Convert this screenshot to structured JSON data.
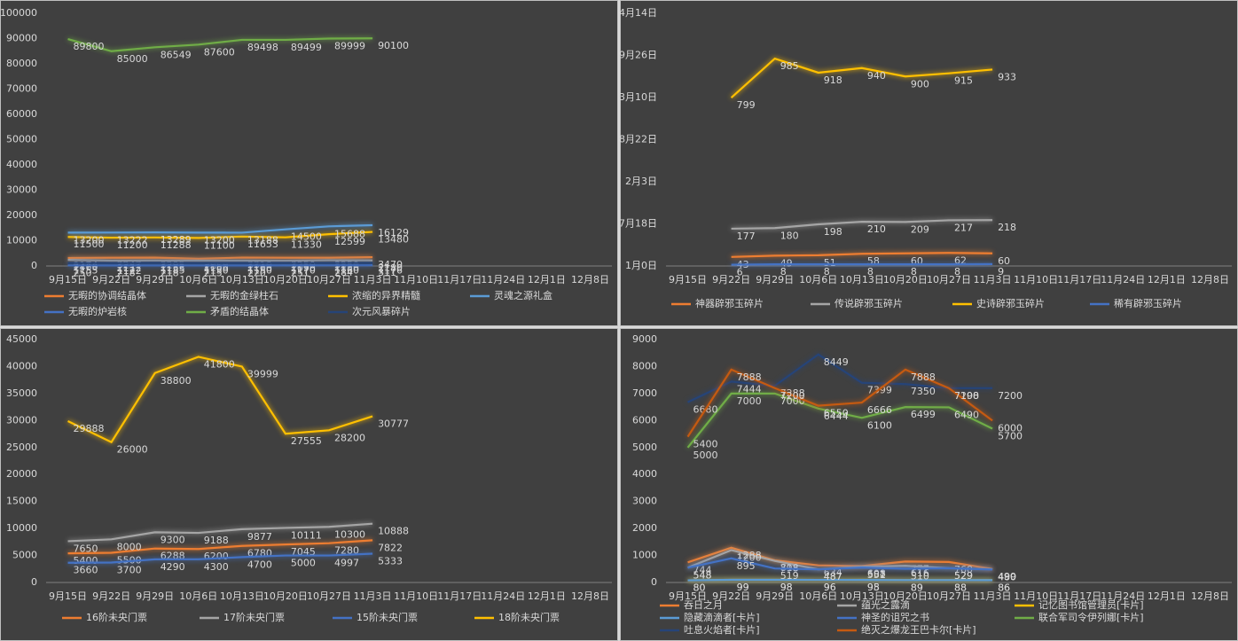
{
  "chart_data": [
    {
      "type": "line",
      "categories": [
        "9月15日",
        "9月22日",
        "9月29日",
        "10月6日",
        "10月13日",
        "10月20日",
        "10月27日",
        "11月3日",
        "11月10日",
        "11月17日",
        "11月24日",
        "12月1日",
        "12月8日"
      ],
      "ylim": [
        0,
        100000
      ],
      "yticks": [
        0,
        10000,
        20000,
        30000,
        40000,
        50000,
        60000,
        70000,
        80000,
        90000,
        100000
      ],
      "series": [
        {
          "name": "无暇的协调结晶体",
          "color": "#ed7d31",
          "values": [
            3174,
            3247,
            3295,
            2850,
            3310,
            3250,
            3250,
            3470,
            null,
            null,
            null,
            null,
            null
          ]
        },
        {
          "name": "无暇的金绿柱石",
          "color": "#a5a5a5",
          "values": [
            2400,
            2112,
            2155,
            2100,
            2100,
            2090,
            2250,
            2180,
            null,
            null,
            null,
            null,
            null
          ]
        },
        {
          "name": "浓缩的异界精髓",
          "color": "#ffc000",
          "values": [
            11500,
            11200,
            11288,
            11100,
            11653,
            11330,
            12599,
            13480,
            null,
            null,
            null,
            null,
            null
          ]
        },
        {
          "name": "灵魂之源礼盒",
          "color": "#5b9bd5",
          "values": [
            13200,
            13222,
            13289,
            13200,
            13188,
            14500,
            15688,
            16129,
            null,
            null,
            null,
            null,
            null
          ]
        },
        {
          "name": "无暇的炉岩核",
          "color": "#4472c4",
          "values": [
            250,
            218,
            218,
            215,
            220,
            251,
            284,
            311,
            null,
            null,
            null,
            null,
            null
          ]
        },
        {
          "name": "矛盾的结晶体",
          "color": "#70ad47",
          "values": [
            89800,
            85000,
            86549,
            87600,
            89498,
            89499,
            89999,
            90100,
            null,
            null,
            null,
            null,
            null
          ]
        },
        {
          "name": "次元风暴碎片",
          "color": "#264478",
          "values": [
            1155,
            1122,
            1185,
            1150,
            1150,
            1170,
            1160,
            1176,
            null,
            null,
            null,
            null,
            null
          ]
        }
      ]
    },
    {
      "type": "line",
      "categories": [
        "9月15日",
        "9月22日",
        "9月29日",
        "10月6日",
        "10月13日",
        "10月20日",
        "10月27日",
        "11月3日",
        "11月10日",
        "11月17日",
        "11月24日",
        "12月1日",
        "12月8日"
      ],
      "ylim": [
        0,
        1200
      ],
      "yticks": [
        {
          "value": 0,
          "label": "1月0日"
        },
        {
          "value": 200,
          "label": "7月18日"
        },
        {
          "value": 400,
          "label": "2月3日"
        },
        {
          "value": 600,
          "label": "8月22日"
        },
        {
          "value": 800,
          "label": "3月10日"
        },
        {
          "value": 1000,
          "label": "9月26日"
        },
        {
          "value": 1200,
          "label": "4月14日"
        }
      ],
      "series": [
        {
          "name": "神器辟邪玉碎片",
          "color": "#ed7d31",
          "values": [
            null,
            43,
            49,
            51,
            58,
            60,
            62,
            60,
            null,
            null,
            null,
            null,
            null
          ]
        },
        {
          "name": "传说辟邪玉碎片",
          "color": "#a5a5a5",
          "values": [
            null,
            177,
            180,
            198,
            210,
            209,
            217,
            218,
            null,
            null,
            null,
            null,
            null
          ]
        },
        {
          "name": "史诗辟邪玉碎片",
          "color": "#ffc000",
          "values": [
            null,
            799,
            985,
            918,
            940,
            900,
            915,
            933,
            null,
            null,
            null,
            null,
            null
          ]
        },
        {
          "name": "稀有辟邪玉碎片",
          "color": "#4472c4",
          "values": [
            null,
            6,
            8,
            8,
            8,
            8,
            8,
            9,
            null,
            null,
            null,
            null,
            null
          ]
        }
      ]
    },
    {
      "type": "line",
      "categories": [
        "9月15日",
        "9月22日",
        "9月29日",
        "10月6日",
        "10月13日",
        "10月20日",
        "10月27日",
        "11月3日",
        "11月10日",
        "11月17日",
        "11月24日",
        "12月1日",
        "12月8日"
      ],
      "ylim": [
        0,
        45000
      ],
      "yticks": [
        0,
        5000,
        10000,
        15000,
        20000,
        25000,
        30000,
        35000,
        40000,
        45000
      ],
      "series": [
        {
          "name": "16阶未央门票",
          "color": "#ed7d31",
          "values": [
            5400,
            5500,
            6288,
            6200,
            6780,
            7045,
            7280,
            7822,
            null,
            null,
            null,
            null,
            null
          ]
        },
        {
          "name": "17阶未央门票",
          "color": "#a5a5a5",
          "values": [
            7650,
            8000,
            9300,
            9188,
            9877,
            10111,
            10300,
            10888,
            null,
            null,
            null,
            null,
            null
          ]
        },
        {
          "name": "15阶未央门票",
          "color": "#4472c4",
          "values": [
            3660,
            3700,
            4290,
            4300,
            4700,
            5000,
            4997,
            5333,
            null,
            null,
            null,
            null,
            null
          ]
        },
        {
          "name": "18阶未央门票",
          "color": "#ffc000",
          "values": [
            29888,
            26000,
            38800,
            41800,
            39999,
            27555,
            28200,
            30777,
            null,
            null,
            null,
            null,
            null
          ]
        }
      ]
    },
    {
      "type": "line",
      "categories": [
        "9月15日",
        "9月22日",
        "9月29日",
        "10月6日",
        "10月13日",
        "10月20日",
        "10月27日",
        "11月3日",
        "11月10日",
        "11月17日",
        "11月24日",
        "12月1日",
        "12月8日"
      ],
      "ylim": [
        0,
        9000
      ],
      "yticks": [
        0,
        1000,
        2000,
        3000,
        4000,
        5000,
        6000,
        7000,
        8000,
        9000
      ],
      "series": [
        {
          "name": "吞日之月",
          "color": "#ed7d31",
          "values": [
            744,
            1288,
            818,
            634,
            608,
            777,
            760,
            499,
            null,
            null,
            null,
            null,
            null
          ]
        },
        {
          "name": "蕴光之露滴",
          "color": "#a5a5a5",
          "values": [
            548,
            1200,
            798,
            487,
            582,
            616,
            529,
            490,
            null,
            null,
            null,
            null,
            null
          ]
        },
        {
          "name": "记忆图书馆管理员[卡片]",
          "color": "#ffc000",
          "values": [
            80,
            99,
            98,
            96,
            98,
            89,
            88,
            86,
            null,
            null,
            null,
            null,
            null
          ]
        },
        {
          "name": "隐藏滴滴者[卡片]",
          "color": "#5b9bd5",
          "values": [
            80,
            99,
            98,
            96,
            95,
            89,
            88,
            86,
            null,
            null,
            null,
            null,
            null
          ]
        },
        {
          "name": "神圣的诅咒之书",
          "color": "#4472c4",
          "values": [
            548,
            895,
            519,
            487,
            551,
            510,
            529,
            480,
            null,
            null,
            null,
            null,
            null
          ]
        },
        {
          "name": "联合军司令伊列娜[卡片]",
          "color": "#70ad47",
          "values": [
            5000,
            7000,
            7000,
            6444,
            6100,
            6499,
            6490,
            5700,
            null,
            null,
            null,
            null,
            null
          ]
        },
        {
          "name": "吐息火焰者[卡片]",
          "color": "#264478",
          "values": [
            6680,
            7444,
            7288,
            8449,
            7399,
            7350,
            7200,
            7200,
            null,
            null,
            null,
            null,
            null
          ]
        },
        {
          "name": "绝灭之爆龙王巴卡尔[卡片]",
          "color": "#c55a11",
          "values": [
            5400,
            7888,
            7200,
            6550,
            6666,
            7888,
            7198,
            6000,
            null,
            null,
            null,
            null,
            null
          ]
        }
      ]
    }
  ]
}
